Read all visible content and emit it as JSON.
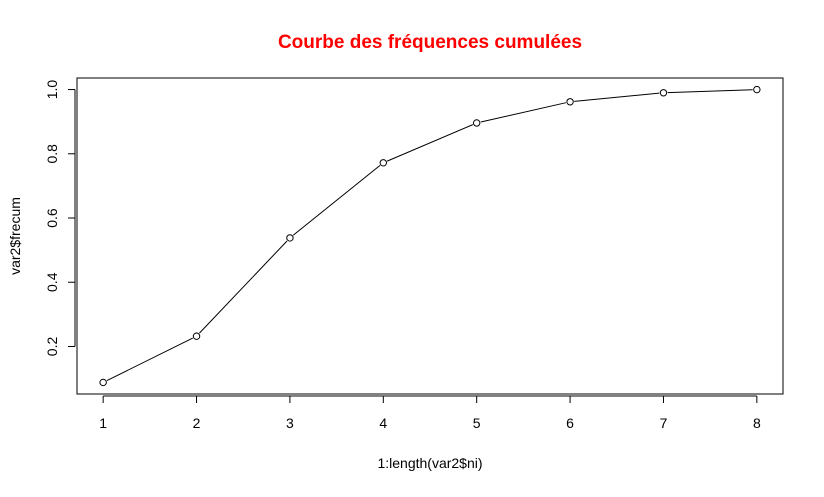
{
  "chart_data": {
    "type": "line",
    "title": "Courbe des fréquences cumulées",
    "xlabel": "1:length(var2$ni)",
    "ylabel": "var2$frecum",
    "x": [
      1,
      2,
      3,
      4,
      5,
      6,
      7,
      8
    ],
    "series": [
      {
        "values": [
          0.088,
          0.232,
          0.538,
          0.772,
          0.896,
          0.962,
          0.99,
          1.0
        ],
        "marker": "open-circle"
      }
    ],
    "xlim": [
      0.72,
      8.28
    ],
    "ylim": [
      0.052,
      1.036
    ],
    "xticks": [
      "1",
      "2",
      "3",
      "4",
      "5",
      "6",
      "7",
      "8"
    ],
    "yticks": [
      "0.2",
      "0.4",
      "0.6",
      "0.8",
      "1.0"
    ],
    "grid": false,
    "colors": {
      "title": "#ff0000",
      "line": "#000000",
      "axes": "#000000"
    }
  }
}
